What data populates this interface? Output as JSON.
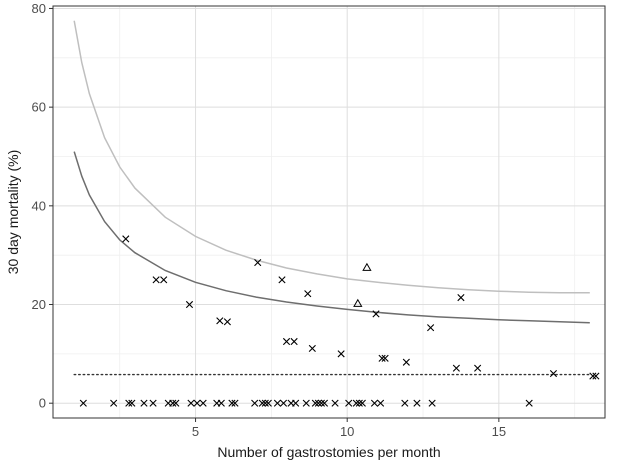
{
  "chart_data": {
    "type": "scatter",
    "title": "",
    "xlabel": "Number of gastrostomies per month",
    "ylabel": "30 day mortality (%)",
    "xlim": [
      0.3,
      18.5
    ],
    "ylim": [
      -3,
      80.5
    ],
    "x_ticks": [
      5,
      10,
      15
    ],
    "x_tick_labels": [
      "5",
      "10",
      "15"
    ],
    "y_ticks": [
      0,
      20,
      40,
      60,
      80
    ],
    "y_tick_labels": [
      "0",
      "20",
      "40",
      "60",
      "80"
    ],
    "grid": true,
    "legend": "none",
    "colors": {
      "panel_border": "#333333",
      "grid_major": "#dedede",
      "grid_minor": "#efefef",
      "points": "#000000",
      "upper_curve": "#bfbfbf",
      "lower_curve": "#6e6e6e",
      "mean_line": "#333333"
    },
    "points_cross": [
      [
        1.3,
        0
      ],
      [
        2.3,
        0
      ],
      [
        2.7,
        33.3
      ],
      [
        2.8,
        0
      ],
      [
        2.9,
        0
      ],
      [
        3.3,
        0
      ],
      [
        3.6,
        0
      ],
      [
        3.7,
        25
      ],
      [
        3.95,
        25
      ],
      [
        4.1,
        0
      ],
      [
        4.25,
        0
      ],
      [
        4.35,
        0
      ],
      [
        4.8,
        20
      ],
      [
        4.85,
        0
      ],
      [
        5.05,
        0
      ],
      [
        5.25,
        0
      ],
      [
        5.7,
        0
      ],
      [
        5.8,
        16.7
      ],
      [
        5.85,
        0
      ],
      [
        6.05,
        16.5
      ],
      [
        6.2,
        0
      ],
      [
        6.3,
        0
      ],
      [
        6.95,
        0
      ],
      [
        7.05,
        28.5
      ],
      [
        7.2,
        0
      ],
      [
        7.3,
        0
      ],
      [
        7.4,
        0
      ],
      [
        7.7,
        0
      ],
      [
        7.85,
        25
      ],
      [
        7.9,
        0
      ],
      [
        8.0,
        12.5
      ],
      [
        8.15,
        0
      ],
      [
        8.25,
        12.5
      ],
      [
        8.3,
        0
      ],
      [
        8.65,
        0
      ],
      [
        8.7,
        22.2
      ],
      [
        8.85,
        11.1
      ],
      [
        8.95,
        0
      ],
      [
        9.05,
        0
      ],
      [
        9.15,
        0
      ],
      [
        9.25,
        0
      ],
      [
        9.6,
        0
      ],
      [
        9.8,
        10
      ],
      [
        10.05,
        0
      ],
      [
        10.3,
        0
      ],
      [
        10.4,
        0
      ],
      [
        10.5,
        0
      ],
      [
        10.9,
        0
      ],
      [
        10.95,
        18.1
      ],
      [
        11.1,
        0
      ],
      [
        11.15,
        9.1
      ],
      [
        11.25,
        9.1
      ],
      [
        11.9,
        0
      ],
      [
        11.95,
        8.3
      ],
      [
        12.3,
        0
      ],
      [
        12.75,
        15.3
      ],
      [
        12.8,
        0
      ],
      [
        13.6,
        7.1
      ],
      [
        13.75,
        21.4
      ],
      [
        14.3,
        7.1
      ],
      [
        16.0,
        0
      ],
      [
        16.8,
        6.0
      ],
      [
        18.1,
        5.5
      ],
      [
        18.2,
        5.5
      ]
    ],
    "points_triangle": [
      [
        10.35,
        20.2
      ],
      [
        10.65,
        27.5
      ]
    ],
    "series": [
      {
        "style": "solid",
        "x": [
          1.0,
          1.25,
          1.5,
          2.0,
          2.5,
          3.0,
          4.0,
          5.0,
          6.0,
          7.0,
          8.0,
          9.0,
          10.0,
          11.0,
          12.0,
          13.0,
          14.0,
          15.0,
          16.0,
          17.0,
          18.0
        ],
        "y": [
          77.5,
          69.0,
          62.7,
          53.8,
          47.9,
          43.6,
          37.7,
          33.8,
          31.0,
          29.0,
          27.4,
          26.2,
          25.2,
          24.5,
          23.9,
          23.4,
          23.0,
          22.7,
          22.5,
          22.4,
          22.4
        ]
      },
      {
        "style": "solid",
        "x": [
          1.0,
          1.25,
          1.5,
          2.0,
          2.5,
          3.0,
          4.0,
          5.0,
          6.0,
          7.0,
          8.0,
          9.0,
          10.0,
          11.0,
          12.0,
          13.0,
          14.0,
          15.0,
          16.0,
          17.0,
          18.0
        ],
        "y": [
          51.0,
          46.0,
          42.2,
          36.8,
          33.1,
          30.5,
          26.9,
          24.5,
          22.8,
          21.5,
          20.5,
          19.7,
          19.0,
          18.4,
          17.9,
          17.5,
          17.2,
          16.9,
          16.7,
          16.5,
          16.3
        ]
      },
      {
        "style": "dotted",
        "x": [
          1.0,
          18.0
        ],
        "y": [
          5.8,
          5.8
        ]
      }
    ]
  }
}
